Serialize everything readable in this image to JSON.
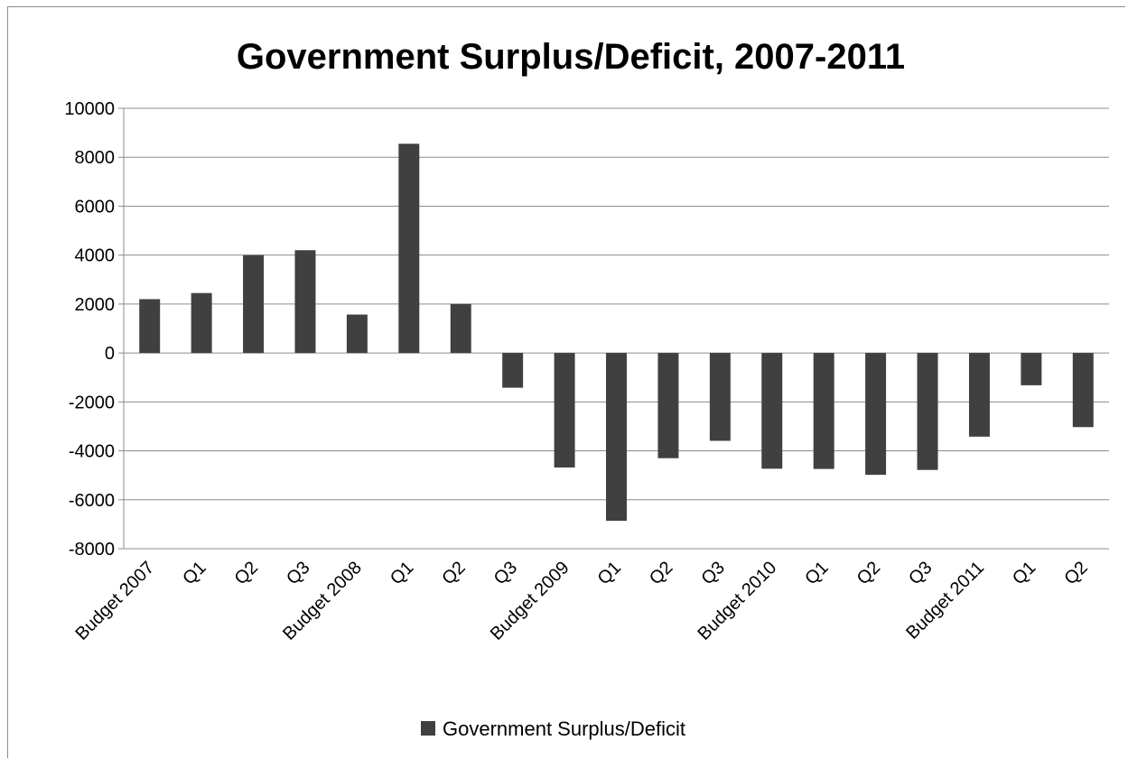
{
  "chart_data": {
    "type": "bar",
    "title": "Government Surplus/Deficit, 2007-2011",
    "xlabel": "",
    "ylabel": "",
    "ylim": [
      -8000,
      10000
    ],
    "yticks": [
      10000,
      8000,
      6000,
      4000,
      2000,
      0,
      -2000,
      -4000,
      -6000,
      -8000
    ],
    "grid": true,
    "legend_position": "bottom",
    "bar_color": "#404040",
    "categories": [
      "Budget 2007",
      "Q1",
      "Q2",
      "Q3",
      "Budget 2008",
      "Q1",
      "Q2",
      "Q3",
      "Budget 2009",
      "Q1",
      "Q2",
      "Q3",
      "Budget 2010",
      "Q1",
      "Q2",
      "Q3",
      "Budget 2011",
      "Q1",
      "Q2"
    ],
    "series": [
      {
        "name": "Government Surplus/Deficit",
        "values": [
          2200,
          2450,
          4000,
          4200,
          1570,
          8550,
          2000,
          -1420,
          -4680,
          -6860,
          -4300,
          -3590,
          -4730,
          -4740,
          -4980,
          -4780,
          -3420,
          -1320,
          -3030
        ]
      }
    ]
  }
}
